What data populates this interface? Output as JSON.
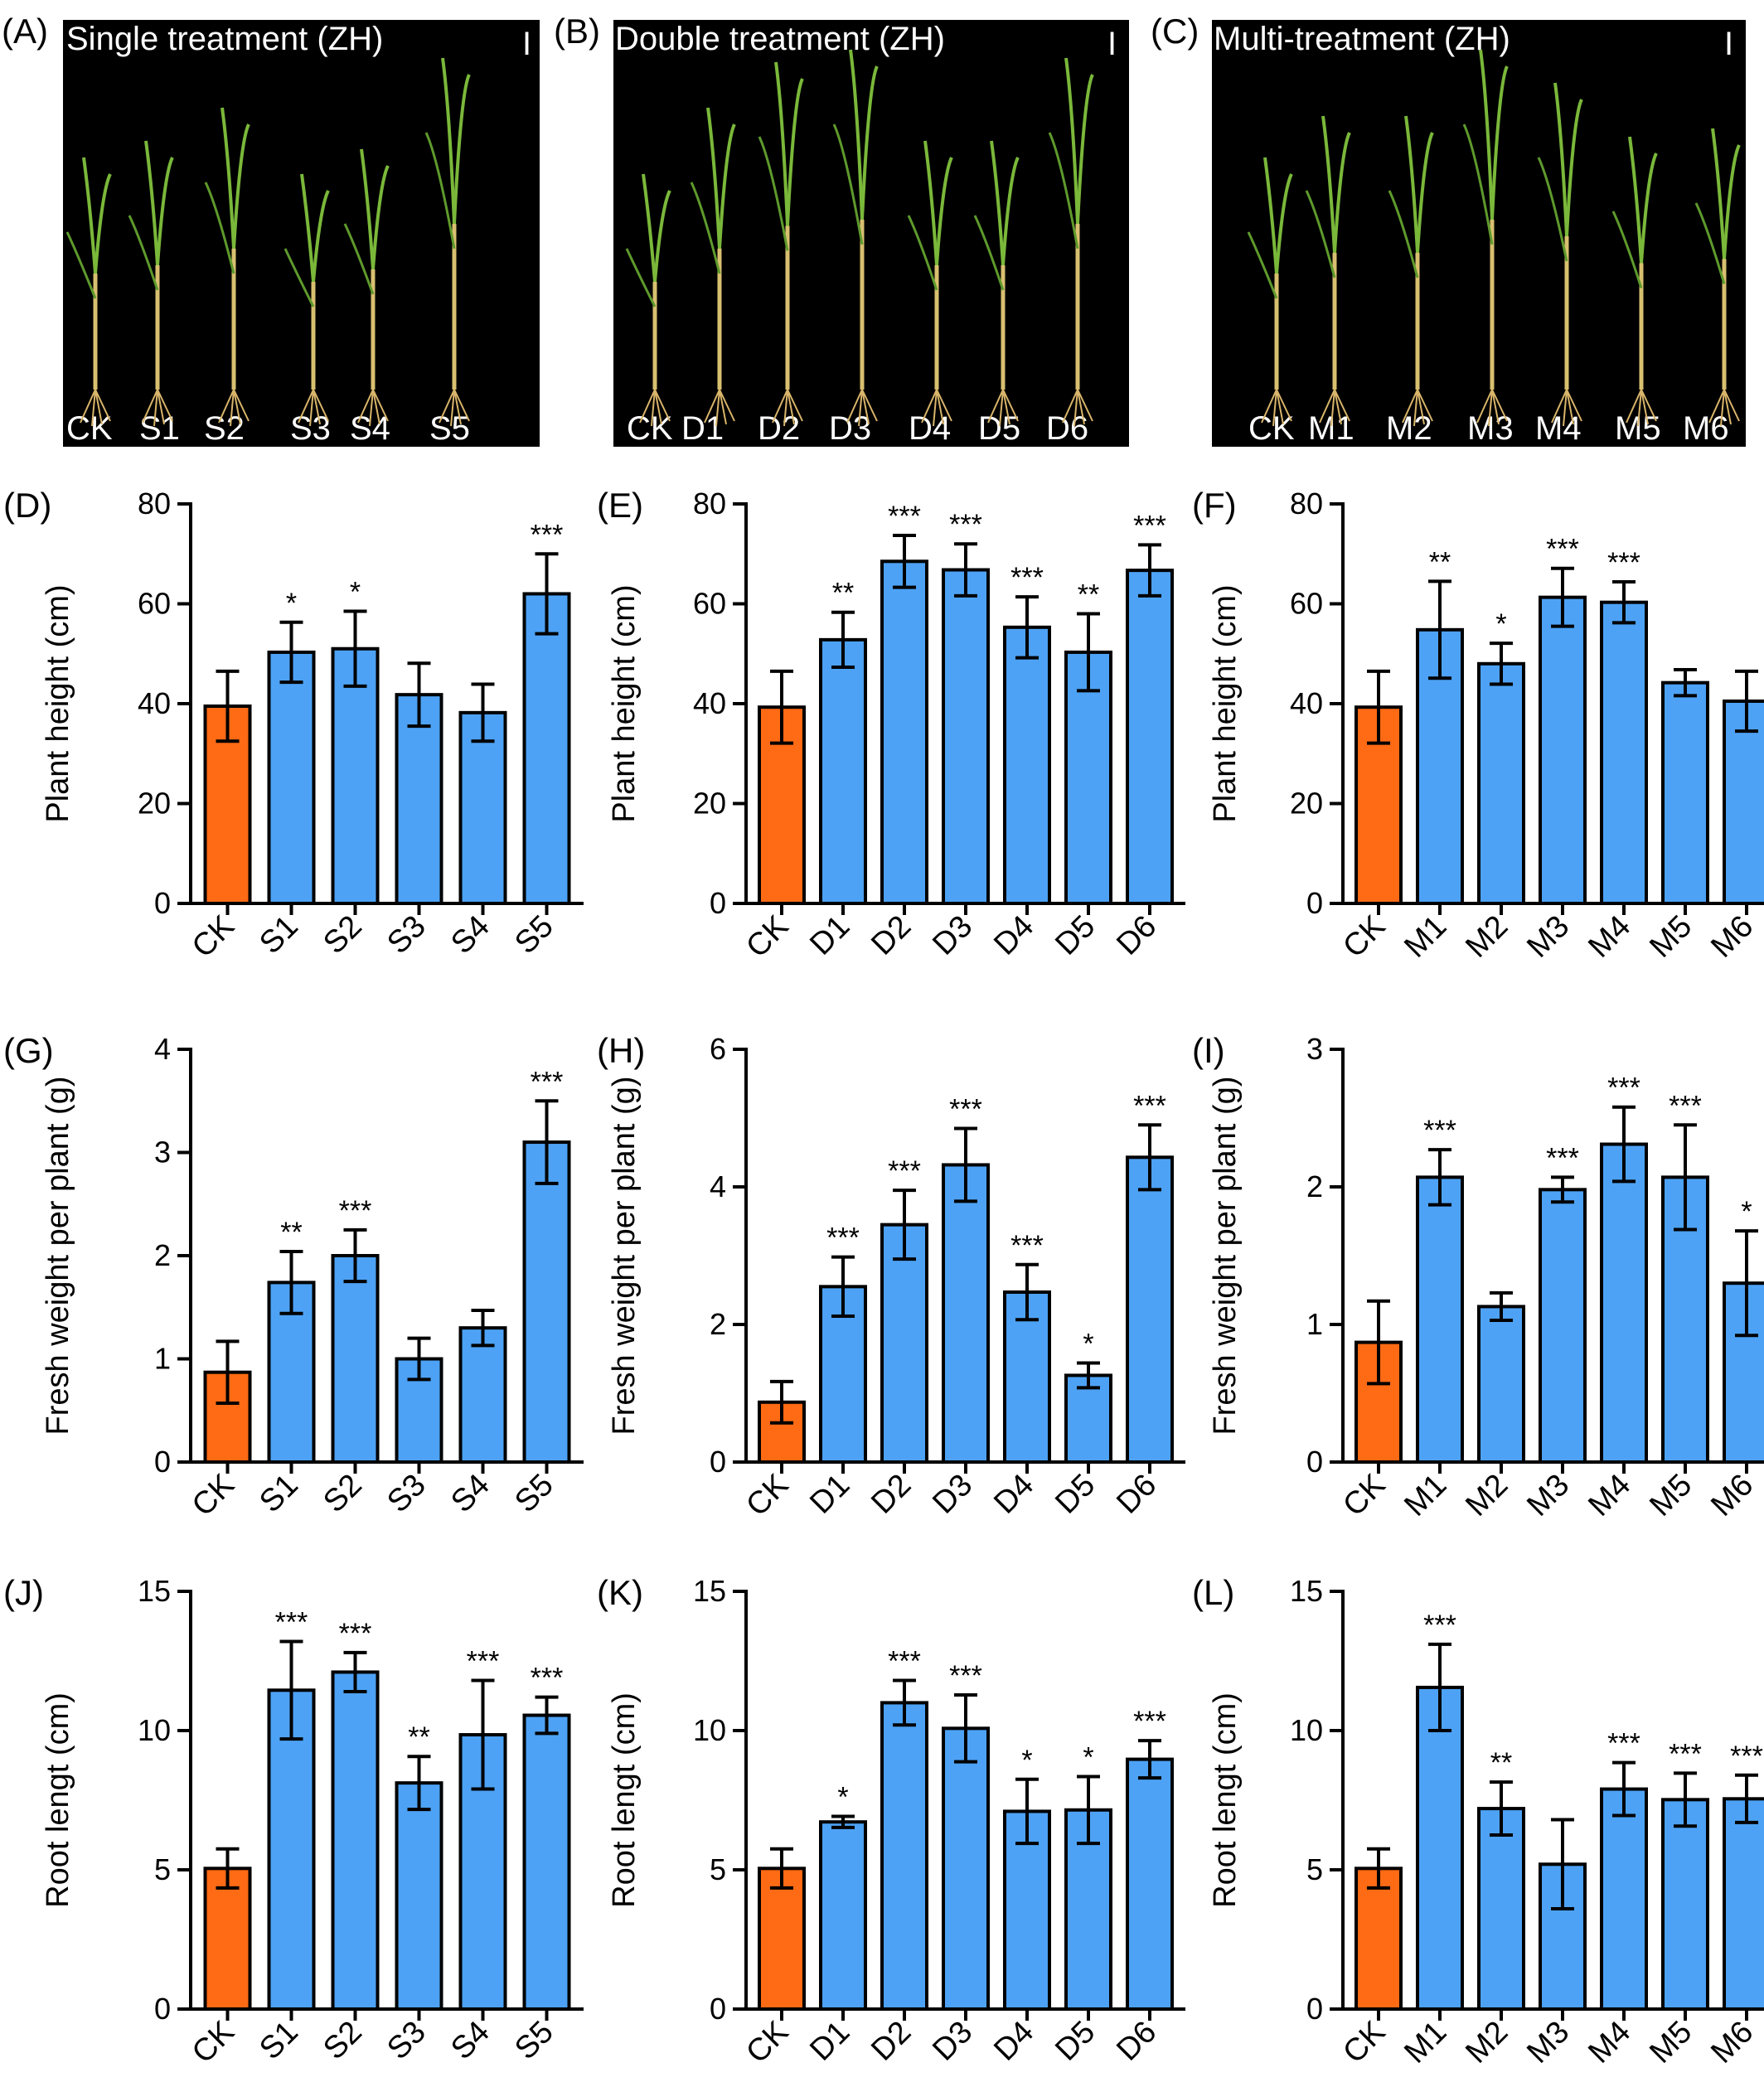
{
  "colors": {
    "control_bar": "#ff6a14",
    "treatment_bar": "#4da2f5",
    "photo_background": "#000000",
    "axis": "#000000"
  },
  "photos": [
    {
      "letter": "(A)",
      "title": "Single treatment (ZH)",
      "scale_mark": "I",
      "labels": [
        "CK",
        "S1",
        "S2",
        "S3",
        "S4",
        "S5"
      ]
    },
    {
      "letter": "(B)",
      "title": "Double treatment (ZH)",
      "scale_mark": "I",
      "labels": [
        "CK",
        "D1",
        "D2",
        "D3",
        "D4",
        "D5",
        "D6"
      ]
    },
    {
      "letter": "(C)",
      "title": "Multi-treatment (ZH)",
      "scale_mark": "I",
      "labels": [
        "CK",
        "M1",
        "M2",
        "M3",
        "M4",
        "M5",
        "M6"
      ]
    }
  ],
  "chart_data": [
    {
      "panel": "(D)",
      "type": "bar",
      "ylabel": "Plant height (cm)",
      "ylim": [
        0,
        80
      ],
      "yticks": [
        0,
        20,
        40,
        60,
        80
      ],
      "categories": [
        "CK",
        "S1",
        "S2",
        "S3",
        "S4",
        "S5"
      ],
      "values": [
        39.5,
        50.3,
        51.0,
        41.8,
        38.2,
        62.0
      ],
      "errors": [
        7,
        6,
        7.5,
        6.3,
        5.7,
        8
      ],
      "significance": [
        "",
        "*",
        "*",
        "",
        "",
        "***"
      ]
    },
    {
      "panel": "(E)",
      "type": "bar",
      "ylabel": "Plant height (cm)",
      "ylim": [
        0,
        80
      ],
      "yticks": [
        0,
        20,
        40,
        60,
        80
      ],
      "categories": [
        "CK",
        "D1",
        "D2",
        "D3",
        "D4",
        "D5",
        "D6"
      ],
      "values": [
        39.3,
        52.8,
        68.5,
        66.8,
        55.3,
        50.3,
        66.7
      ],
      "errors": [
        7.2,
        5.5,
        5.2,
        5.2,
        6.1,
        7.7,
        5.1
      ],
      "significance": [
        "",
        "**",
        "***",
        "***",
        "***",
        "**",
        "***"
      ]
    },
    {
      "panel": "(F)",
      "type": "bar",
      "ylabel": "Plant height (cm)",
      "ylim": [
        0,
        80
      ],
      "yticks": [
        0,
        20,
        40,
        60,
        80
      ],
      "categories": [
        "CK",
        "M1",
        "M2",
        "M3",
        "M4",
        "M5",
        "M6"
      ],
      "values": [
        39.3,
        54.8,
        48.0,
        61.3,
        60.3,
        44.2,
        40.5
      ],
      "errors": [
        7.2,
        9.7,
        4.1,
        5.8,
        4.1,
        2.6,
        6
      ],
      "significance": [
        "",
        "**",
        "*",
        "***",
        "***",
        "",
        ""
      ]
    },
    {
      "panel": "(G)",
      "type": "bar",
      "ylabel": "Fresh weight per plant (g)",
      "ylim": [
        0,
        4
      ],
      "yticks": [
        0,
        1,
        2,
        3,
        4
      ],
      "categories": [
        "CK",
        "S1",
        "S2",
        "S3",
        "S4",
        "S5"
      ],
      "values": [
        0.87,
        1.74,
        2.0,
        1.0,
        1.3,
        3.1
      ],
      "errors": [
        0.3,
        0.3,
        0.25,
        0.2,
        0.17,
        0.4
      ],
      "significance": [
        "",
        "**",
        "***",
        "",
        "",
        "***"
      ]
    },
    {
      "panel": "(H)",
      "type": "bar",
      "ylabel": "Fresh weight per plant (g)",
      "ylim": [
        0,
        6
      ],
      "yticks": [
        0,
        2,
        4,
        6
      ],
      "categories": [
        "CK",
        "D1",
        "D2",
        "D3",
        "D4",
        "D5",
        "D6"
      ],
      "values": [
        0.87,
        2.55,
        3.45,
        4.32,
        2.47,
        1.26,
        4.43
      ],
      "errors": [
        0.3,
        0.43,
        0.5,
        0.53,
        0.4,
        0.18,
        0.47
      ],
      "significance": [
        "",
        "***",
        "***",
        "***",
        "***",
        "*",
        "***"
      ]
    },
    {
      "panel": "(I)",
      "type": "bar",
      "ylabel": "Fresh weight per plant (g)",
      "ylim": [
        0,
        3
      ],
      "yticks": [
        0,
        1,
        2,
        3
      ],
      "categories": [
        "CK",
        "M1",
        "M2",
        "M3",
        "M4",
        "M5",
        "M6"
      ],
      "values": [
        0.87,
        2.07,
        1.13,
        1.98,
        2.31,
        2.07,
        1.3
      ],
      "errors": [
        0.3,
        0.2,
        0.1,
        0.09,
        0.27,
        0.38,
        0.38
      ],
      "significance": [
        "",
        "***",
        "",
        "***",
        "***",
        "***",
        "*"
      ]
    },
    {
      "panel": "(J)",
      "type": "bar",
      "ylabel": "Root lengt (cm)",
      "ylim": [
        0,
        15
      ],
      "yticks": [
        0,
        5,
        10,
        15
      ],
      "categories": [
        "CK",
        "S1",
        "S2",
        "S3",
        "S4",
        "S5"
      ],
      "values": [
        5.05,
        11.45,
        12.1,
        8.12,
        9.85,
        10.55
      ],
      "errors": [
        0.7,
        1.75,
        0.7,
        0.95,
        1.95,
        0.65
      ],
      "significance": [
        "",
        "***",
        "***",
        "**",
        "***",
        "***"
      ]
    },
    {
      "panel": "(K)",
      "type": "bar",
      "ylabel": "Root lengt (cm)",
      "ylim": [
        0,
        15
      ],
      "yticks": [
        0,
        5,
        10,
        15
      ],
      "categories": [
        "CK",
        "D1",
        "D2",
        "D3",
        "D4",
        "D5",
        "D6"
      ],
      "values": [
        5.05,
        6.72,
        11.0,
        10.08,
        7.1,
        7.15,
        8.97
      ],
      "errors": [
        0.7,
        0.2,
        0.8,
        1.2,
        1.15,
        1.2,
        0.67
      ],
      "significance": [
        "",
        "*",
        "***",
        "***",
        "*",
        "*",
        "***"
      ]
    },
    {
      "panel": "(L)",
      "type": "bar",
      "ylabel": "Root lengt (cm)",
      "ylim": [
        0,
        15
      ],
      "yticks": [
        0,
        5,
        10,
        15
      ],
      "categories": [
        "CK",
        "M1",
        "M2",
        "M3",
        "M4",
        "M5",
        "M6"
      ],
      "values": [
        5.05,
        11.55,
        7.2,
        5.2,
        7.9,
        7.52,
        7.55
      ],
      "errors": [
        0.7,
        1.55,
        0.95,
        1.6,
        0.95,
        0.95,
        0.85
      ],
      "significance": [
        "",
        "***",
        "**",
        "",
        "***",
        "***",
        "***"
      ]
    }
  ]
}
